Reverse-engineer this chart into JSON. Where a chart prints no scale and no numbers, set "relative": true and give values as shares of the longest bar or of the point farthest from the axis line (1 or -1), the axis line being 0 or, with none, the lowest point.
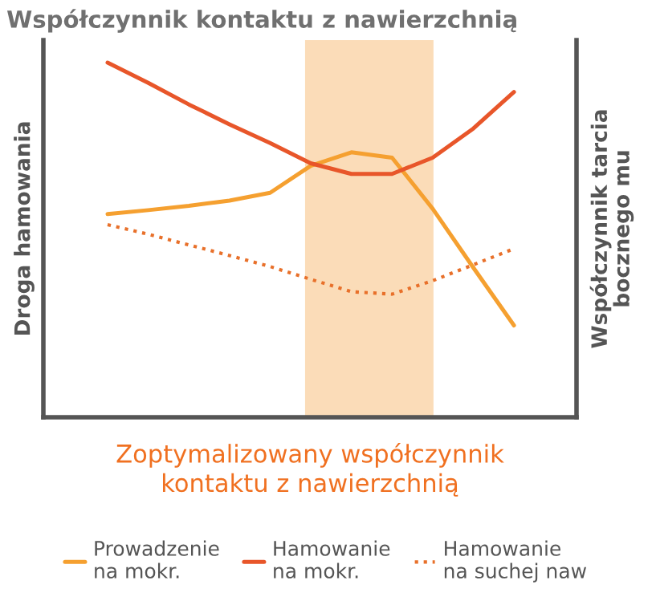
{
  "chart_data": {
    "type": "line",
    "relative": true,
    "title": "Współczynnik kontaktu z nawierzchnią",
    "xlabel": "Zoptymalizowany współczynnik\nkontaktu z nawierzchnią",
    "ylabel": "Droga hamowania",
    "y2label": "Współczynnik tarcia\nbocznego mu",
    "categories": [
      null,
      null,
      null,
      null,
      null,
      null,
      null,
      null,
      null,
      null,
      null
    ],
    "series": [
      {
        "name": "Prowadzenie\nna mokr.",
        "color": "#f5a030",
        "line_style": "solid",
        "values": [
          0.573,
          0.584,
          0.596,
          0.611,
          0.633,
          0.709,
          0.747,
          0.732,
          0.588,
          0.422,
          0.259
        ]
      },
      {
        "name": "Hamowanie\nna mokr.",
        "color": "#e8562a",
        "line_style": "solid",
        "values": [
          1,
          0.943,
          0.882,
          0.826,
          0.773,
          0.716,
          0.686,
          0.686,
          0.732,
          0.814,
          0.917
        ]
      },
      {
        "name": "Hamowanie\nna suchej naw",
        "color": "#e8702a",
        "line_style": "dotted",
        "values": [
          0.543,
          0.516,
          0.486,
          0.456,
          0.425,
          0.389,
          0.354,
          0.347,
          0.385,
          0.43,
          0.475
        ]
      }
    ],
    "legend": "bottom",
    "grid": false
  }
}
